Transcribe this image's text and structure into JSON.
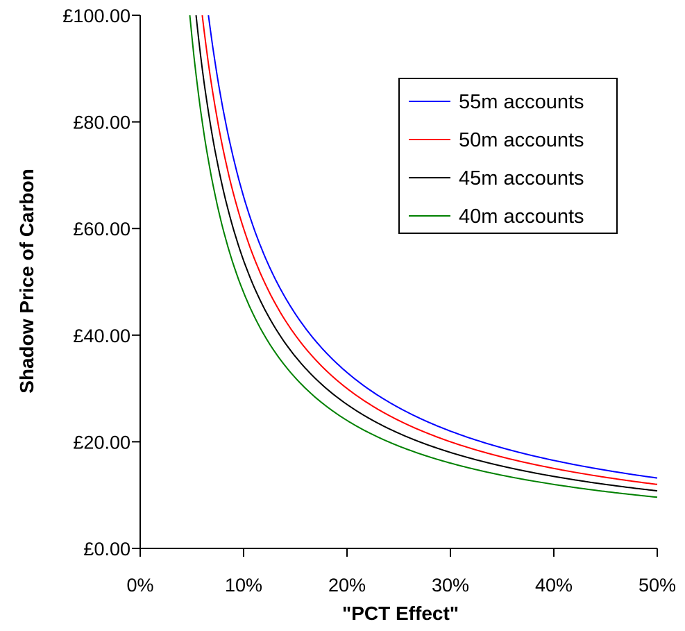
{
  "chart_data": {
    "type": "line",
    "title": "",
    "xlabel": "\"PCT Effect\"",
    "ylabel": "Shadow Price of Carbon",
    "xlim": [
      0,
      50
    ],
    "ylim": [
      0,
      100
    ],
    "x_ticks": [
      "0%",
      "10%",
      "20%",
      "30%",
      "40%",
      "50%"
    ],
    "y_ticks": [
      "£0.00",
      "£20.00",
      "£40.00",
      "£60.00",
      "£80.00",
      "£100.00"
    ],
    "grid": false,
    "legend_position": "top-right",
    "series": [
      {
        "name": "55m accounts",
        "color": "#0000ff",
        "k": 660
      },
      {
        "name": "50m accounts",
        "color": "#ff0000",
        "k": 600
      },
      {
        "name": "45m accounts",
        "color": "#000000",
        "k": 540
      },
      {
        "name": "40m accounts",
        "color": "#008000",
        "k": 480
      }
    ]
  }
}
